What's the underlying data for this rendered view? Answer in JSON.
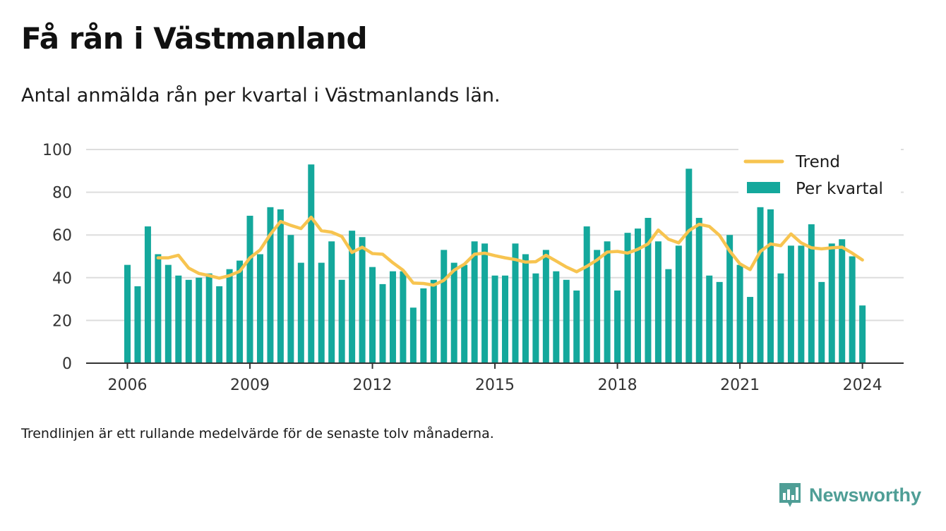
{
  "title": "Få rån i Västmanland",
  "subtitle": "Antal anmälda rån per kvartal i Västmanlands län.",
  "note": "Trendlinjen är ett rullande medelvärde för de senaste tolv månaderna.",
  "brand": "Newsworthy",
  "colors": {
    "bar": "#14a89c",
    "trend": "#f7c450",
    "grid": "#dddddd",
    "axis": "#333333",
    "brand": "#4f9e96"
  },
  "chart_data": {
    "type": "bar",
    "ylim": [
      0,
      100
    ],
    "yticks": [
      0,
      20,
      40,
      60,
      80,
      100
    ],
    "xticks": [
      "2006",
      "2009",
      "2012",
      "2015",
      "2018",
      "2021",
      "2024"
    ],
    "grid": true,
    "legend_position": "top-right",
    "series": [
      {
        "name": "Per kvartal",
        "type": "bar",
        "values": [
          46,
          36,
          64,
          51,
          46,
          41,
          39,
          40,
          42,
          36,
          44,
          48,
          69,
          51,
          73,
          72,
          60,
          47,
          93,
          47,
          57,
          39,
          62,
          59,
          45,
          37,
          43,
          43,
          26,
          35,
          39,
          53,
          47,
          46,
          57,
          56,
          41,
          41,
          56,
          51,
          42,
          53,
          43,
          39,
          34,
          64,
          53,
          57,
          34,
          61,
          63,
          68,
          57,
          44,
          55,
          91,
          68,
          41,
          38,
          60,
          46,
          31,
          73,
          72,
          42,
          55,
          55,
          65,
          38,
          56,
          58,
          50,
          27
        ]
      },
      {
        "name": "Trend",
        "type": "line",
        "start_index": 3,
        "values": [
          49.3,
          49.3,
          50.5,
          44.5,
          42,
          41,
          39.8,
          41,
          43,
          49.3,
          53,
          60.3,
          66.3,
          64.5,
          63,
          68.3,
          62,
          61.3,
          59.3,
          51.8,
          54.3,
          51.3,
          51,
          47,
          43.5,
          37.5,
          37.3,
          36.5,
          38.8,
          43.5,
          46.3,
          51,
          51.5,
          50.3,
          49.3,
          48.5,
          47.3,
          47.5,
          50.5,
          47.8,
          45,
          42.8,
          45.3,
          48.3,
          52,
          52.3,
          51.5,
          53.3,
          55.8,
          62.3,
          58,
          56.3,
          62,
          65,
          64,
          59.8,
          52.5,
          46.5,
          43.8,
          52.3,
          55.8,
          55,
          60.5,
          56.3,
          54,
          53.5,
          54,
          54.3,
          51.5,
          48.3
        ]
      }
    ]
  }
}
